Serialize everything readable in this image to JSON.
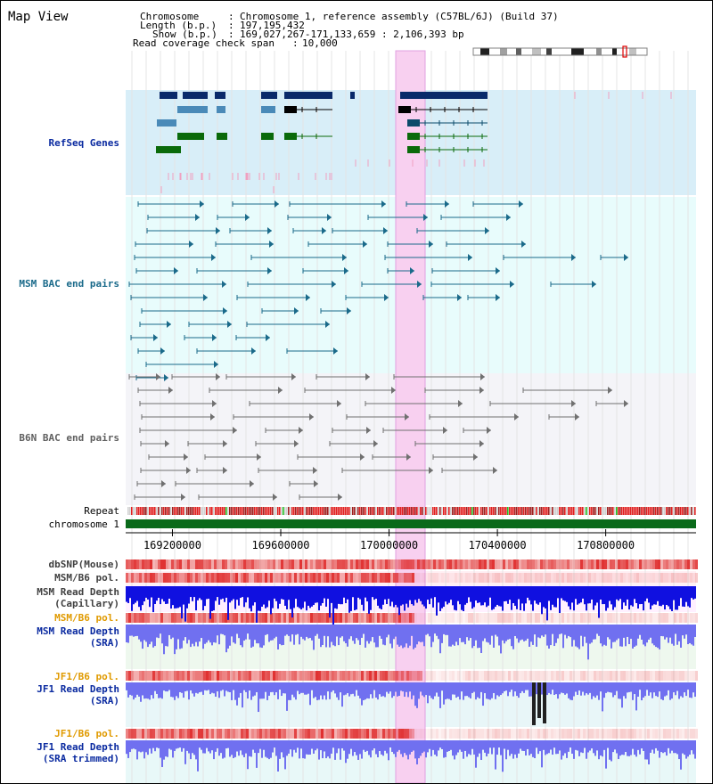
{
  "title": "Map View",
  "info": {
    "chromosome_label": "Chromosome",
    "chromosome_value": "Chromosome 1, reference assembly (C57BL/6J) (Build 37)",
    "length_label": "Length (b.p.)",
    "length_value": "197,195,432",
    "show_label": "Show (b.p.)",
    "show_value": "169,027,267-171,133,659 : 2,106,393 bp",
    "coverage_label": "Read coverage check span",
    "coverage_value": "10,000"
  },
  "tracks": {
    "refseq": "RefSeq Genes",
    "msm_bac": "MSM BAC end pairs",
    "b6n_bac": "B6N BAC end pairs",
    "repeat": "Repeat",
    "chromosome": "chromosome 1",
    "dbsnp": "dbSNP(Mouse)",
    "msm_b6_pol_1": "MSM/B6 pol.",
    "msm_depth_cap_1": "MSM Read Depth",
    "msm_depth_cap_2": "(Capillary)",
    "msm_b6_pol_2": "MSM/B6 pol.",
    "msm_depth_sra_1": "MSM Read Depth",
    "msm_depth_sra_2": "(SRA)",
    "jf1_b6_pol_1": "JF1/B6 pol.",
    "jf1_depth_sra_1": "JF1 Read Depth",
    "jf1_depth_sra_2": "(SRA)",
    "jf1_b6_pol_2": "JF1/B6 pol.",
    "jf1_depth_trim_1": "JF1 Read Depth",
    "jf1_depth_trim_2": "(SRA trimmed)"
  },
  "axis": {
    "ticks": [
      "169200000",
      "169600000",
      "170000000",
      "170400000",
      "170800000"
    ],
    "tick_values": [
      169200000,
      169600000,
      170000000,
      170400000,
      170800000
    ],
    "start": 169027267,
    "end": 171133659
  },
  "colors": {
    "refseq_bg": "#d8eef8",
    "msm_bg": "#e8fcfc",
    "b6n_bg": "#f4f4f8",
    "highlight": "#f8d0f0",
    "refseq_dark": "#0a2a6a",
    "refseq_mid": "#4a8ab8",
    "refseq_green": "#0a6a0a",
    "refseq_pink": "#f0a0c0",
    "msm_line": "#1a6a8a",
    "b6n_line": "#707070",
    "chromosome_bar": "#0a6a1a",
    "depth_blue": "#1010e0",
    "depth_light": "#7070f0",
    "pol_red": "#e03030",
    "label_blue": "#0a2aa0",
    "label_teal": "#1a6a8a",
    "label_orange": "#e09a00"
  }
}
